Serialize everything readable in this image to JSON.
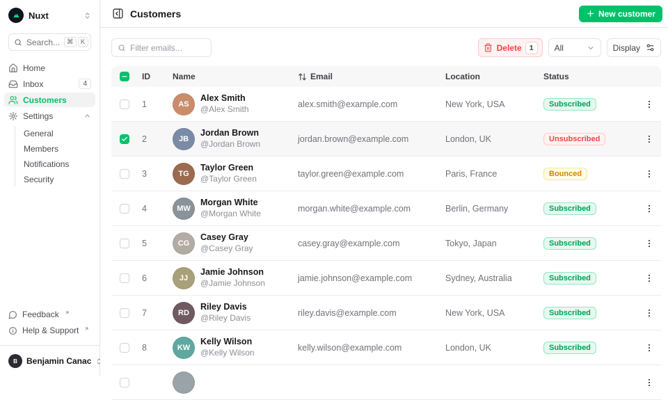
{
  "colors": {
    "primary": "#00C16A",
    "error": "#EF4444",
    "warning": "#CA8A04",
    "border": "#e4e4e7"
  },
  "sidebar": {
    "workspace": {
      "name": "Nuxt"
    },
    "search": {
      "label": "Search...",
      "kbd1": "⌘",
      "kbd2": "K"
    },
    "nav": [
      {
        "label": "Home"
      },
      {
        "label": "Inbox",
        "badge": "4"
      },
      {
        "label": "Customers",
        "active": true
      },
      {
        "label": "Settings",
        "expanded": true
      }
    ],
    "settings_children": [
      "General",
      "Members",
      "Notifications",
      "Security"
    ],
    "footer_links": [
      {
        "label": "Feedback"
      },
      {
        "label": "Help & Support"
      }
    ],
    "user": {
      "name": "Benjamin Canac",
      "initials": "B"
    }
  },
  "header": {
    "title": "Customers",
    "new_customer_label": "New customer"
  },
  "toolbar": {
    "filter_placeholder": "Filter emails...",
    "delete_label": "Delete",
    "delete_count": "1",
    "filter_select_value": "All",
    "display_label": "Display"
  },
  "table": {
    "columns": {
      "id": "ID",
      "name": "Name",
      "email": "Email",
      "location": "Location",
      "status": "Status"
    },
    "rows": [
      {
        "id": "1",
        "name": "Alex Smith",
        "handle": "@Alex Smith",
        "email": "alex.smith@example.com",
        "location": "New York, USA",
        "status": "Subscribed",
        "status_type": "success",
        "selected": false,
        "avatar_initials": "AS",
        "avatar_bg": "#c98d6b"
      },
      {
        "id": "2",
        "name": "Jordan Brown",
        "handle": "@Jordan Brown",
        "email": "jordan.brown@example.com",
        "location": "London, UK",
        "status": "Unsubscribed",
        "status_type": "error",
        "selected": true,
        "avatar_initials": "JB",
        "avatar_bg": "#7a8ba6"
      },
      {
        "id": "3",
        "name": "Taylor Green",
        "handle": "@Taylor Green",
        "email": "taylor.green@example.com",
        "location": "Paris, France",
        "status": "Bounced",
        "status_type": "warning",
        "selected": false,
        "avatar_initials": "TG",
        "avatar_bg": "#9c6b4f"
      },
      {
        "id": "4",
        "name": "Morgan White",
        "handle": "@Morgan White",
        "email": "morgan.white@example.com",
        "location": "Berlin, Germany",
        "status": "Subscribed",
        "status_type": "success",
        "selected": false,
        "avatar_initials": "MW",
        "avatar_bg": "#8a9399"
      },
      {
        "id": "5",
        "name": "Casey Gray",
        "handle": "@Casey Gray",
        "email": "casey.gray@example.com",
        "location": "Tokyo, Japan",
        "status": "Subscribed",
        "status_type": "success",
        "selected": false,
        "avatar_initials": "CG",
        "avatar_bg": "#b3aca4"
      },
      {
        "id": "6",
        "name": "Jamie Johnson",
        "handle": "@Jamie Johnson",
        "email": "jamie.johnson@example.com",
        "location": "Sydney, Australia",
        "status": "Subscribed",
        "status_type": "success",
        "selected": false,
        "avatar_initials": "JJ",
        "avatar_bg": "#a8a078"
      },
      {
        "id": "7",
        "name": "Riley Davis",
        "handle": "@Riley Davis",
        "email": "riley.davis@example.com",
        "location": "New York, USA",
        "status": "Subscribed",
        "status_type": "success",
        "selected": false,
        "avatar_initials": "RD",
        "avatar_bg": "#6e5a60"
      },
      {
        "id": "8",
        "name": "Kelly Wilson",
        "handle": "@Kelly Wilson",
        "email": "kelly.wilson@example.com",
        "location": "London, UK",
        "status": "Subscribed",
        "status_type": "success",
        "selected": false,
        "avatar_initials": "KW",
        "avatar_bg": "#5fa8a0"
      }
    ],
    "partial_row": {
      "avatar_bg": "#9aa3a8"
    }
  }
}
